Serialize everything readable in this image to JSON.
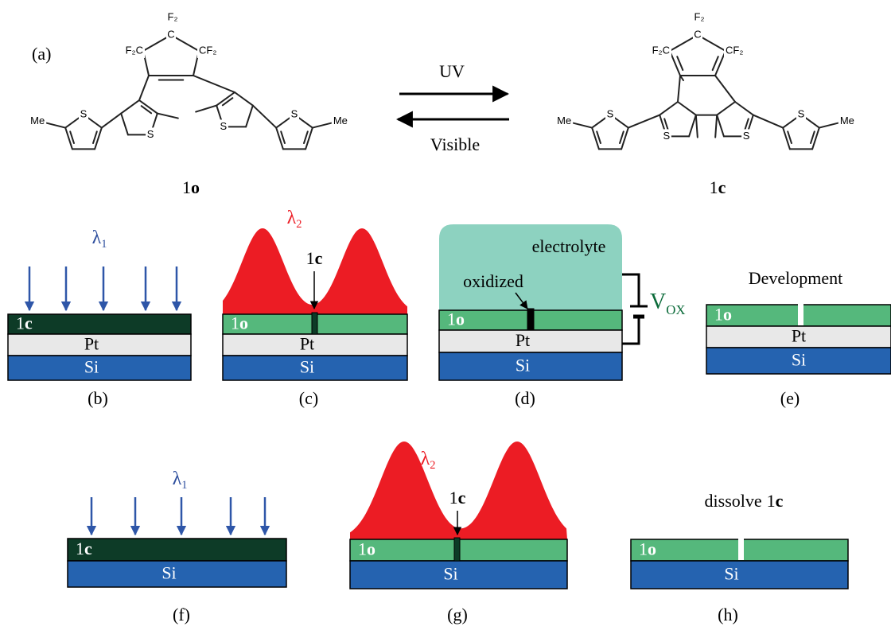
{
  "panel_a": {
    "label": "(a)",
    "forward": "UV",
    "reverse": "Visible",
    "molecules": [
      {
        "name": {
          "num": "1",
          "letter": "o"
        },
        "atoms": [
          "F₂",
          "C",
          "F₂C",
          "CF₂",
          "Me",
          "S",
          "S",
          "S",
          "S",
          "Me"
        ]
      },
      {
        "name": {
          "num": "1",
          "letter": "c"
        },
        "atoms": [
          "F₂",
          "C",
          "F₂C",
          "CF₂",
          "Me",
          "S",
          "S",
          "S",
          "S",
          "Me"
        ]
      }
    ]
  },
  "panels": [
    {
      "label": "(b)",
      "light": {
        "symbol": "λ",
        "sub": "1"
      },
      "layers": [
        {
          "num": "1",
          "letter": "c"
        },
        {
          "text": "Pt"
        },
        {
          "text": "Si"
        }
      ]
    },
    {
      "label": "(c)",
      "light": {
        "symbol": "λ",
        "sub": "2"
      },
      "pointer": {
        "num": "1",
        "letter": "c"
      },
      "layers": [
        {
          "num": "1",
          "letter": "o"
        },
        {
          "text": "Pt"
        },
        {
          "text": "Si"
        }
      ]
    },
    {
      "label": "(d)",
      "electrolyte": "electrolyte",
      "marker": "oxidized",
      "voltage": {
        "symbol": "V",
        "sub": "OX"
      },
      "layers": [
        {
          "num": "1",
          "letter": "o"
        },
        {
          "text": "Pt"
        },
        {
          "text": "Si"
        }
      ]
    },
    {
      "label": "(e)",
      "caption": {
        "text": "Development"
      },
      "layers": [
        {
          "num": "1",
          "letter": "o"
        },
        {
          "text": "Pt"
        },
        {
          "text": "Si"
        }
      ]
    },
    {
      "label": "(f)",
      "light": {
        "symbol": "λ",
        "sub": "1"
      },
      "layers": [
        {
          "num": "1",
          "letter": "c"
        },
        {
          "text": "Si"
        }
      ]
    },
    {
      "label": "(g)",
      "light": {
        "symbol": "λ",
        "sub": "2"
      },
      "pointer": {
        "num": "1",
        "letter": "c"
      },
      "layers": [
        {
          "num": "1",
          "letter": "o"
        },
        {
          "text": "Si"
        }
      ]
    },
    {
      "label": "(h)",
      "caption": {
        "text": "dissolve",
        "num": "1",
        "letter": "c"
      },
      "layers": [
        {
          "num": "1",
          "letter": "o"
        },
        {
          "text": "Si"
        }
      ]
    }
  ]
}
